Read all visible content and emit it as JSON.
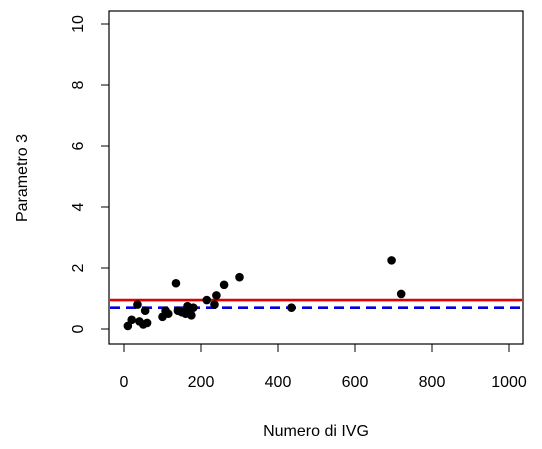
{
  "chart_data": {
    "type": "scatter",
    "title": "",
    "xlabel": "Numero di IVG",
    "ylabel": "Parametro 3",
    "xlim": [
      0,
      1000
    ],
    "ylim": [
      0,
      10
    ],
    "x_ticks": [
      {
        "value": 0,
        "label": "0"
      },
      {
        "value": 200,
        "label": "200"
      },
      {
        "value": 400,
        "label": "400"
      },
      {
        "value": 600,
        "label": "600"
      },
      {
        "value": 800,
        "label": "800"
      },
      {
        "value": 1000,
        "label": "1000"
      }
    ],
    "y_ticks": [
      {
        "value": 0,
        "label": "0"
      },
      {
        "value": 2,
        "label": "2"
      },
      {
        "value": 4,
        "label": "4"
      },
      {
        "value": 6,
        "label": "6"
      },
      {
        "value": 8,
        "label": "8"
      },
      {
        "value": 10,
        "label": "10"
      }
    ],
    "grid": false,
    "legend": "none",
    "points_color": "#000000",
    "points": [
      {
        "x": 10,
        "y": 0.1
      },
      {
        "x": 20,
        "y": 0.3
      },
      {
        "x": 35,
        "y": 0.8
      },
      {
        "x": 40,
        "y": 0.25
      },
      {
        "x": 50,
        "y": 0.15
      },
      {
        "x": 55,
        "y": 0.6
      },
      {
        "x": 60,
        "y": 0.2
      },
      {
        "x": 100,
        "y": 0.4
      },
      {
        "x": 108,
        "y": 0.6
      },
      {
        "x": 115,
        "y": 0.5
      },
      {
        "x": 135,
        "y": 1.5
      },
      {
        "x": 140,
        "y": 0.6
      },
      {
        "x": 150,
        "y": 0.55
      },
      {
        "x": 160,
        "y": 0.5
      },
      {
        "x": 165,
        "y": 0.75
      },
      {
        "x": 170,
        "y": 0.65
      },
      {
        "x": 175,
        "y": 0.45
      },
      {
        "x": 180,
        "y": 0.7
      },
      {
        "x": 215,
        "y": 0.95
      },
      {
        "x": 235,
        "y": 0.8
      },
      {
        "x": 240,
        "y": 1.1
      },
      {
        "x": 260,
        "y": 1.45
      },
      {
        "x": 300,
        "y": 1.7
      },
      {
        "x": 435,
        "y": 0.7
      },
      {
        "x": 695,
        "y": 2.25
      },
      {
        "x": 720,
        "y": 1.15
      }
    ],
    "reference_lines": [
      {
        "y": 0.95,
        "color": "#e00000",
        "style": "solid"
      },
      {
        "y": 0.7,
        "color": "#0000e0",
        "style": "dashed"
      }
    ]
  }
}
